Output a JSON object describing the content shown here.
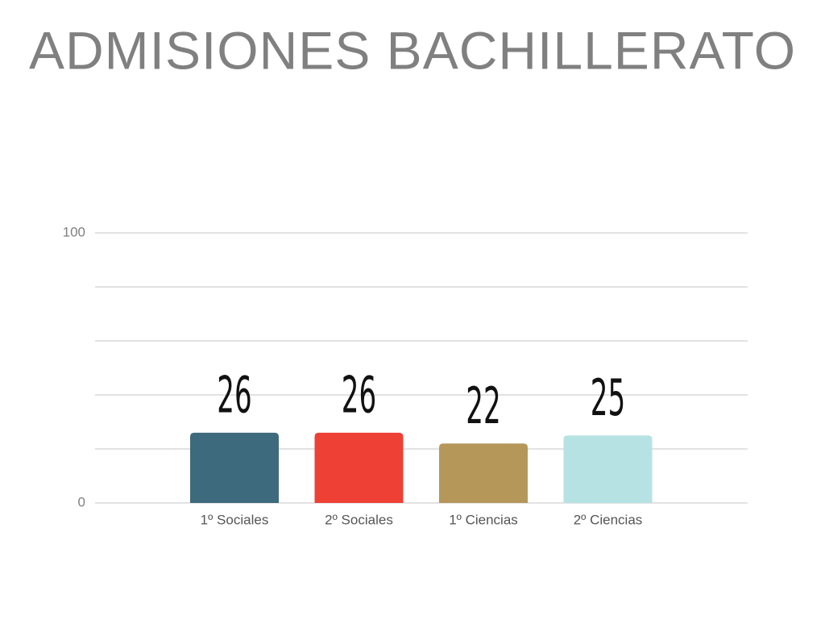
{
  "chart_data": {
    "type": "bar",
    "title": "ADMISIONES BACHILLERATO",
    "categories": [
      "1º Sociales",
      "2º Sociales",
      "1º Ciencias",
      "2º Ciencias"
    ],
    "values": [
      26,
      26,
      22,
      25
    ],
    "colors": [
      "#3d6a7d",
      "#ee4035",
      "#b5975a",
      "#b6e2e3"
    ],
    "ylim": [
      0,
      100
    ],
    "yticks": [
      0,
      {
        "value": 20,
        "label": null
      },
      {
        "value": 40,
        "label": null
      },
      {
        "value": 60,
        "label": null
      },
      {
        "value": 80,
        "label": null
      },
      100
    ],
    "grid": true
  }
}
